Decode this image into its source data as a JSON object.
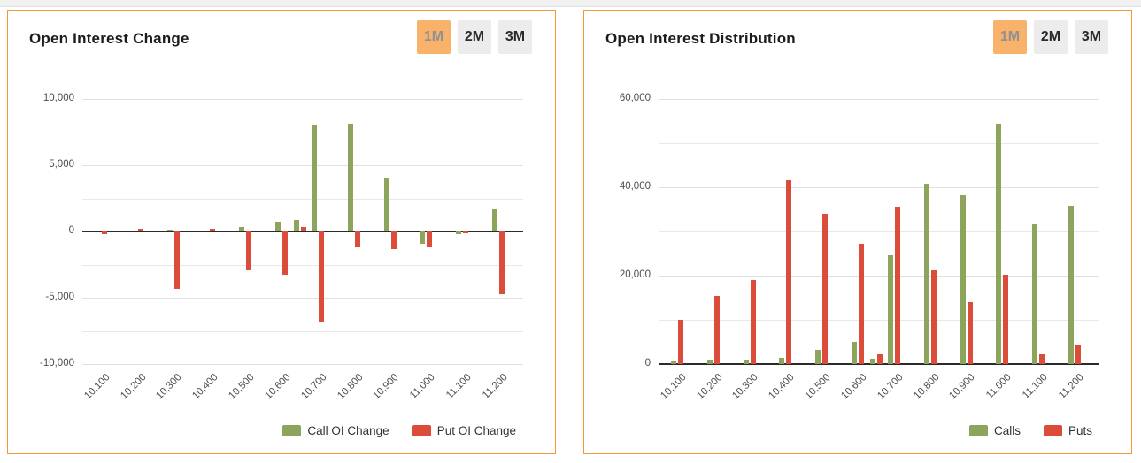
{
  "colors": {
    "panel_border": "#f0993b",
    "active_button_bg": "#f8b269",
    "inactive_button_bg": "#ececec",
    "call_green": "#8ca45c",
    "put_red": "#dc4c3a",
    "grid": "#e9e9e9",
    "zero_line": "#2b2b2b",
    "axis_text": "#4d4d4d"
  },
  "panels": [
    {
      "title": "Open Interest Change",
      "range_buttons": [
        {
          "label": "1M",
          "active": true
        },
        {
          "label": "2M",
          "active": false
        },
        {
          "label": "3M",
          "active": false
        }
      ],
      "legend": [
        {
          "label": "Call OI Change",
          "color": "#8ca45c"
        },
        {
          "label": "Put OI Change",
          "color": "#dc4c3a"
        }
      ]
    },
    {
      "title": "Open Interest Distribution",
      "range_buttons": [
        {
          "label": "1M",
          "active": true
        },
        {
          "label": "2M",
          "active": false
        },
        {
          "label": "3M",
          "active": false
        }
      ],
      "legend": [
        {
          "label": "Calls",
          "color": "#8ca45c"
        },
        {
          "label": "Puts",
          "color": "#dc4c3a"
        }
      ]
    }
  ],
  "chart_data": [
    {
      "type": "bar",
      "title": "Open Interest Change",
      "x": [
        10100,
        10200,
        10300,
        10400,
        10500,
        10600,
        10650,
        10700,
        10800,
        10900,
        11000,
        11100,
        11200
      ],
      "series": [
        {
          "name": "Call OI Change",
          "color": "#8ca45c",
          "values": [
            0,
            0,
            150,
            0,
            350,
            750,
            900,
            8000,
            8150,
            4000,
            -900,
            -200,
            1700
          ]
        },
        {
          "name": "Put OI Change",
          "color": "#dc4c3a",
          "values": [
            -200,
            200,
            -4350,
            200,
            -2900,
            -3250,
            350,
            -6800,
            -1100,
            -1300,
            -1100,
            -150,
            -4700
          ]
        }
      ],
      "ylim": [
        -10000,
        10000
      ],
      "y_minor_step": 2500,
      "y_major_ticks": [
        {
          "value": 10000,
          "label": "10,000"
        },
        {
          "value": 5000,
          "label": "5,000"
        },
        {
          "value": 0,
          "label": "0"
        },
        {
          "value": -5000,
          "label": "-5,000"
        },
        {
          "value": -10000,
          "label": "-10,000"
        }
      ],
      "x_axis_ticks": [
        {
          "value": 10100,
          "label": "10,100"
        },
        {
          "value": 10200,
          "label": "10,200"
        },
        {
          "value": 10300,
          "label": "10,300"
        },
        {
          "value": 10400,
          "label": "10,400"
        },
        {
          "value": 10500,
          "label": "10,500"
        },
        {
          "value": 10600,
          "label": "10,600"
        },
        {
          "value": 10700,
          "label": "10,700"
        },
        {
          "value": 10800,
          "label": "10,800"
        },
        {
          "value": 10900,
          "label": "10,900"
        },
        {
          "value": 11000,
          "label": "11,000"
        },
        {
          "value": 11100,
          "label": "11,100"
        },
        {
          "value": 11200,
          "label": "11,200"
        }
      ],
      "grid": true,
      "legend_position": "bottom-right"
    },
    {
      "type": "bar",
      "title": "Open Interest Distribution",
      "x": [
        10100,
        10200,
        10300,
        10400,
        10500,
        10600,
        10650,
        10700,
        10800,
        10900,
        11000,
        11100,
        11200
      ],
      "series": [
        {
          "name": "Calls",
          "color": "#8ca45c",
          "values": [
            700,
            1000,
            1100,
            1500,
            3300,
            5000,
            1200,
            24700,
            40800,
            38200,
            54400,
            31800,
            35800
          ]
        },
        {
          "name": "Puts",
          "color": "#dc4c3a",
          "values": [
            10000,
            15500,
            19000,
            41700,
            34000,
            27200,
            2300,
            35700,
            21200,
            14000,
            20300,
            2200,
            4500
          ]
        }
      ],
      "ylim": [
        0,
        60000
      ],
      "y_minor_step": 10000,
      "y_major_ticks": [
        {
          "value": 60000,
          "label": "60,000"
        },
        {
          "value": 40000,
          "label": "40,000"
        },
        {
          "value": 20000,
          "label": "20,000"
        },
        {
          "value": 0,
          "label": "0"
        }
      ],
      "x_axis_ticks": [
        {
          "value": 10100,
          "label": "10,100"
        },
        {
          "value": 10200,
          "label": "10,200"
        },
        {
          "value": 10300,
          "label": "10,300"
        },
        {
          "value": 10400,
          "label": "10,400"
        },
        {
          "value": 10500,
          "label": "10,500"
        },
        {
          "value": 10600,
          "label": "10,600"
        },
        {
          "value": 10700,
          "label": "10,700"
        },
        {
          "value": 10800,
          "label": "10,800"
        },
        {
          "value": 10900,
          "label": "10,900"
        },
        {
          "value": 11000,
          "label": "11,000"
        },
        {
          "value": 11100,
          "label": "11,100"
        },
        {
          "value": 11200,
          "label": "11,200"
        }
      ],
      "grid": true,
      "legend_position": "bottom-right"
    }
  ]
}
